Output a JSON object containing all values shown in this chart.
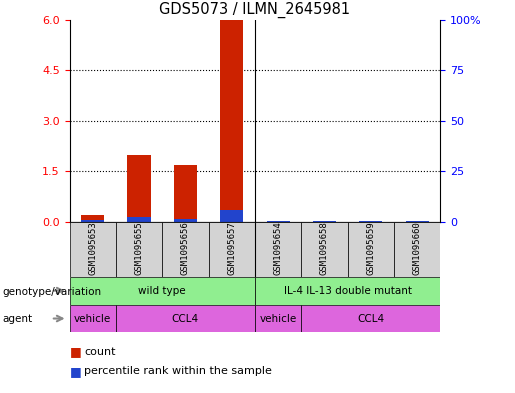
{
  "title": "GDS5073 / ILMN_2645981",
  "samples": [
    "GSM1095653",
    "GSM1095655",
    "GSM1095656",
    "GSM1095657",
    "GSM1095654",
    "GSM1095658",
    "GSM1095659",
    "GSM1095660"
  ],
  "count_values": [
    0.2,
    2.0,
    1.7,
    6.0,
    0.02,
    0.02,
    0.02,
    0.02
  ],
  "percentile_values": [
    0.05,
    0.15,
    0.1,
    0.35,
    0.02,
    0.02,
    0.02,
    0.02
  ],
  "ylim_left": [
    0,
    6
  ],
  "ylim_right": [
    0,
    100
  ],
  "yticks_left": [
    0,
    1.5,
    3,
    4.5,
    6
  ],
  "yticks_right": [
    0,
    25,
    50,
    75,
    100
  ],
  "count_color": "#cc2200",
  "percentile_color": "#2244cc",
  "bg_color": "#ffffff",
  "separator_color": "#888888",
  "genotype_groups": [
    {
      "label": "wild type",
      "start": 0,
      "end": 4,
      "color": "#90ee90"
    },
    {
      "label": "IL-4 IL-13 double mutant",
      "start": 4,
      "end": 8,
      "color": "#90ee90"
    }
  ],
  "agent_groups": [
    {
      "label": "vehicle",
      "start": 0,
      "end": 1,
      "color": "#dd66dd"
    },
    {
      "label": "CCL4",
      "start": 1,
      "end": 4,
      "color": "#dd66dd"
    },
    {
      "label": "vehicle",
      "start": 4,
      "end": 5,
      "color": "#dd66dd"
    },
    {
      "label": "CCL4",
      "start": 5,
      "end": 8,
      "color": "#dd66dd"
    }
  ],
  "genotype_label": "genotype/variation",
  "agent_label": "agent",
  "legend_count": "count",
  "legend_percentile": "percentile rank within the sample",
  "sample_box_color": "#d3d3d3",
  "arrow_color": "#888888"
}
